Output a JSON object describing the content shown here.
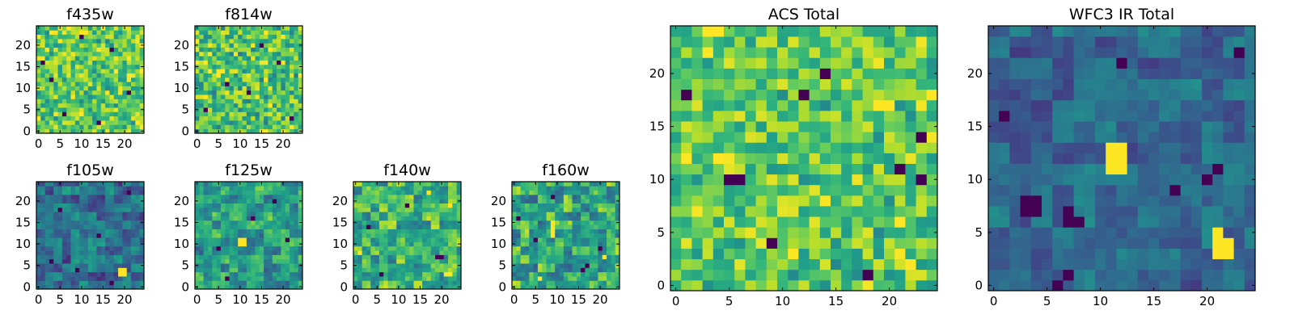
{
  "chart_data": [
    {
      "id": "f435w",
      "type": "heatmap",
      "title": "f435w",
      "grid_size": 25,
      "colormap": "viridis",
      "xticks": [
        0,
        5,
        10,
        15,
        20
      ],
      "yticks": [
        0,
        5,
        10,
        15,
        20
      ],
      "xtick_labels": [
        "0",
        "5",
        "10",
        "15",
        "20"
      ],
      "ytick_labels": [
        "0",
        "5",
        "10",
        "15",
        "20"
      ],
      "texture": {
        "seed": 11,
        "mean": 0.76,
        "spread": 0.28,
        "block": 1,
        "dark_cells": [
          [
            3,
            12
          ],
          [
            17,
            19
          ],
          [
            6,
            4
          ],
          [
            21,
            9
          ],
          [
            10,
            22
          ],
          [
            14,
            2
          ],
          [
            1,
            16
          ]
        ],
        "bright_cells": []
      }
    },
    {
      "id": "f814w",
      "type": "heatmap",
      "title": "f814w",
      "grid_size": 25,
      "colormap": "viridis",
      "xticks": [
        0,
        5,
        10,
        15,
        20
      ],
      "yticks": [
        0,
        5,
        10,
        15,
        20
      ],
      "xtick_labels": [
        "0",
        "5",
        "10",
        "15",
        "20"
      ],
      "ytick_labels": [
        "0",
        "5",
        "10",
        "15",
        "20"
      ],
      "texture": {
        "seed": 23,
        "mean": 0.72,
        "spread": 0.3,
        "block": 1,
        "dark_cells": [
          [
            7,
            11
          ],
          [
            12,
            9
          ],
          [
            19,
            16
          ],
          [
            2,
            5
          ],
          [
            15,
            20
          ],
          [
            22,
            3
          ]
        ],
        "bright_cells": []
      }
    },
    {
      "id": "f105w",
      "type": "heatmap",
      "title": "f105w",
      "grid_size": 25,
      "colormap": "viridis",
      "xticks": [
        0,
        5,
        10,
        15,
        20
      ],
      "yticks": [
        0,
        5,
        10,
        15,
        20
      ],
      "xtick_labels": [
        "0",
        "5",
        "10",
        "15",
        "20"
      ],
      "ytick_labels": [
        "0",
        "5",
        "10",
        "15",
        "20"
      ],
      "texture": {
        "seed": 37,
        "mean": 0.36,
        "spread": 0.22,
        "block": 2,
        "dark_cells": [
          [
            3,
            6
          ],
          [
            17,
            1
          ],
          [
            9,
            4
          ],
          [
            14,
            12
          ],
          [
            5,
            18
          ],
          [
            21,
            22
          ]
        ],
        "bright_cells": [
          [
            19,
            3
          ],
          [
            20,
            3
          ],
          [
            19,
            4
          ],
          [
            20,
            4
          ]
        ]
      }
    },
    {
      "id": "f125w",
      "type": "heatmap",
      "title": "f125w",
      "grid_size": 25,
      "colormap": "viridis",
      "xticks": [
        0,
        5,
        10,
        15,
        20
      ],
      "yticks": [
        0,
        5,
        10,
        15,
        20
      ],
      "xtick_labels": [
        "0",
        "5",
        "10",
        "15",
        "20"
      ],
      "ytick_labels": [
        "0",
        "5",
        "10",
        "15",
        "20"
      ],
      "texture": {
        "seed": 41,
        "mean": 0.55,
        "spread": 0.26,
        "block": 2,
        "dark_cells": [
          [
            5,
            9
          ],
          [
            13,
            16
          ],
          [
            18,
            20
          ],
          [
            7,
            2
          ],
          [
            21,
            11
          ]
        ],
        "bright_cells": [
          [
            10,
            10
          ],
          [
            11,
            10
          ],
          [
            10,
            11
          ],
          [
            11,
            11
          ]
        ]
      }
    },
    {
      "id": "f140w",
      "type": "heatmap",
      "title": "f140w",
      "grid_size": 25,
      "colormap": "viridis",
      "xticks": [
        0,
        5,
        10,
        15,
        20
      ],
      "yticks": [
        0,
        5,
        10,
        15,
        20
      ],
      "xtick_labels": [
        "0",
        "5",
        "10",
        "15",
        "20"
      ],
      "ytick_labels": [
        "0",
        "5",
        "10",
        "15",
        "20"
      ],
      "texture": {
        "seed": 53,
        "mean": 0.65,
        "spread": 0.28,
        "block": 2,
        "dark_cells": [
          [
            6,
            3
          ],
          [
            19,
            7
          ],
          [
            20,
            7
          ],
          [
            3,
            14
          ],
          [
            12,
            19
          ]
        ],
        "bright_cells": [
          [
            21,
            3
          ],
          [
            22,
            3
          ],
          [
            1,
            8
          ],
          [
            17,
            22
          ],
          [
            22,
            19
          ]
        ]
      }
    },
    {
      "id": "f160w",
      "type": "heatmap",
      "title": "f160w",
      "grid_size": 25,
      "colormap": "viridis",
      "xticks": [
        0,
        5,
        10,
        15,
        20
      ],
      "yticks": [
        0,
        5,
        10,
        15,
        20
      ],
      "xtick_labels": [
        "0",
        "5",
        "10",
        "15",
        "20"
      ],
      "ytick_labels": [
        "0",
        "5",
        "10",
        "15",
        "20"
      ],
      "texture": {
        "seed": 67,
        "mean": 0.6,
        "spread": 0.3,
        "block": 2,
        "dark_cells": [
          [
            1,
            16
          ],
          [
            16,
            4
          ],
          [
            17,
            5
          ],
          [
            5,
            11
          ],
          [
            20,
            9
          ],
          [
            9,
            21
          ]
        ],
        "bright_cells": [
          [
            9,
            12
          ],
          [
            9,
            13
          ],
          [
            9,
            14
          ],
          [
            9,
            15
          ],
          [
            6,
            2
          ],
          [
            21,
            7
          ]
        ]
      }
    },
    {
      "id": "acs_total",
      "type": "heatmap",
      "title": "ACS Total",
      "grid_size": 25,
      "colormap": "viridis",
      "xticks": [
        0,
        5,
        10,
        15,
        20
      ],
      "yticks": [
        0,
        5,
        10,
        15,
        20
      ],
      "xtick_labels": [
        "0",
        "5",
        "10",
        "15",
        "20"
      ],
      "ytick_labels": [
        "0",
        "5",
        "10",
        "15",
        "20"
      ],
      "texture": {
        "seed": 79,
        "mean": 0.74,
        "spread": 0.26,
        "block": 1,
        "dark_cells": [
          [
            1,
            18
          ],
          [
            5,
            10
          ],
          [
            6,
            10
          ],
          [
            14,
            20
          ],
          [
            12,
            18
          ],
          [
            21,
            11
          ],
          [
            23,
            10
          ],
          [
            23,
            14
          ],
          [
            18,
            1
          ],
          [
            9,
            4
          ]
        ],
        "bright_cells": [
          [
            3,
            24
          ],
          [
            4,
            24
          ],
          [
            3,
            22
          ],
          [
            21,
            6
          ],
          [
            24,
            18
          ],
          [
            19,
            17
          ],
          [
            20,
            17
          ],
          [
            4,
            12
          ]
        ]
      }
    },
    {
      "id": "wfc3_ir_total",
      "type": "heatmap",
      "title": "WFC3 IR Total",
      "grid_size": 25,
      "colormap": "viridis",
      "xticks": [
        0,
        5,
        10,
        15,
        20
      ],
      "yticks": [
        0,
        5,
        10,
        15,
        20
      ],
      "xtick_labels": [
        "0",
        "5",
        "10",
        "15",
        "20"
      ],
      "ytick_labels": [
        "0",
        "5",
        "10",
        "15",
        "20"
      ],
      "texture": {
        "seed": 97,
        "mean": 0.34,
        "spread": 0.16,
        "block": 2,
        "dark_cells": [
          [
            3,
            7
          ],
          [
            4,
            7
          ],
          [
            3,
            8
          ],
          [
            4,
            8
          ],
          [
            7,
            6
          ],
          [
            8,
            6
          ],
          [
            7,
            7
          ],
          [
            6,
            0
          ],
          [
            7,
            1
          ],
          [
            1,
            16
          ],
          [
            21,
            11
          ],
          [
            20,
            10
          ],
          [
            17,
            9
          ],
          [
            23,
            22
          ],
          [
            12,
            21
          ]
        ],
        "bright_cells": [
          [
            11,
            11
          ],
          [
            12,
            11
          ],
          [
            11,
            12
          ],
          [
            12,
            12
          ],
          [
            11,
            13
          ],
          [
            12,
            13
          ],
          [
            21,
            3
          ],
          [
            22,
            3
          ],
          [
            21,
            4
          ],
          [
            22,
            4
          ],
          [
            21,
            5
          ]
        ]
      }
    }
  ]
}
